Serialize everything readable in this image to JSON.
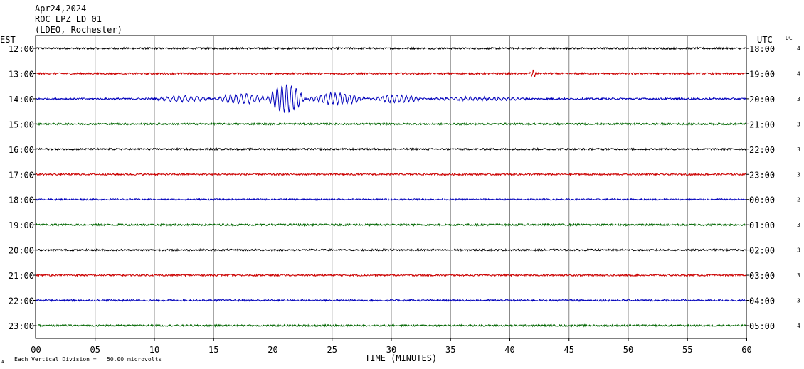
{
  "header": {
    "date": "Apr24,2024",
    "station": "ROC LPZ LD 01",
    "location": "(LDEO, Rochester)"
  },
  "left_zone_label": "EST",
  "right_zone_label": "UTC",
  "dc_label": "DC",
  "footer": {
    "scale_note": "Each Vertical Division =   50.00 microvolts",
    "corner_mark": "A"
  },
  "chart_data": {
    "type": "line",
    "title": "",
    "xlabel": "TIME (MINUTES)",
    "ylabel": "",
    "xlim": [
      0,
      60
    ],
    "x_ticks": [
      "00",
      "05",
      "10",
      "15",
      "20",
      "25",
      "30",
      "35",
      "40",
      "45",
      "50",
      "55",
      "60"
    ],
    "grid": true,
    "trace_colors": [
      "#000000",
      "#cc0000",
      "#0000bb",
      "#006600"
    ],
    "rows": [
      {
        "est": "12:00",
        "utc": "18:00",
        "dc": "4",
        "color": "#000000",
        "noise": 1.2,
        "events": []
      },
      {
        "est": "13:00",
        "utc": "19:00",
        "dc": "4",
        "color": "#cc0000",
        "noise": 1.2,
        "events": [
          {
            "start": 41.7,
            "end": 42.4,
            "amp": 5,
            "period": 0.25
          }
        ]
      },
      {
        "est": "14:00",
        "utc": "20:00",
        "dc": "3",
        "color": "#0000bb",
        "noise": 1.2,
        "events": [
          {
            "start": 10.0,
            "end": 15.0,
            "amp": 4,
            "period": 0.5
          },
          {
            "start": 15.0,
            "end": 19.8,
            "amp": 7,
            "period": 0.45
          },
          {
            "start": 19.5,
            "end": 22.8,
            "amp": 20,
            "period": 0.4
          },
          {
            "start": 22.8,
            "end": 28.0,
            "amp": 8,
            "period": 0.4
          },
          {
            "start": 28.0,
            "end": 33.0,
            "amp": 5,
            "period": 0.4
          },
          {
            "start": 33.0,
            "end": 42.0,
            "amp": 2,
            "period": 0.4
          }
        ]
      },
      {
        "est": "15:00",
        "utc": "21:00",
        "dc": "3",
        "color": "#006600",
        "noise": 1.2,
        "events": []
      },
      {
        "est": "16:00",
        "utc": "22:00",
        "dc": "3",
        "color": "#000000",
        "noise": 1.2,
        "events": []
      },
      {
        "est": "17:00",
        "utc": "23:00",
        "dc": "3",
        "color": "#cc0000",
        "noise": 1.2,
        "events": []
      },
      {
        "est": "18:00",
        "utc": "00:00",
        "dc": "2",
        "color": "#0000bb",
        "noise": 1.0,
        "events": []
      },
      {
        "est": "19:00",
        "utc": "01:00",
        "dc": "3",
        "color": "#006600",
        "noise": 1.3,
        "events": []
      },
      {
        "est": "20:00",
        "utc": "02:00",
        "dc": "3",
        "color": "#000000",
        "noise": 1.2,
        "events": []
      },
      {
        "est": "21:00",
        "utc": "03:00",
        "dc": "3",
        "color": "#cc0000",
        "noise": 1.2,
        "events": []
      },
      {
        "est": "22:00",
        "utc": "04:00",
        "dc": "3",
        "color": "#0000bb",
        "noise": 1.2,
        "events": []
      },
      {
        "est": "23:00",
        "utc": "05:00",
        "dc": "4",
        "color": "#006600",
        "noise": 1.2,
        "events": []
      }
    ]
  }
}
